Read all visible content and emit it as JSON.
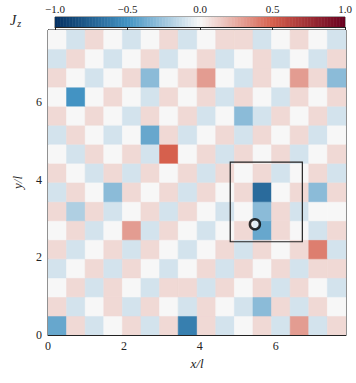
{
  "chart_data": {
    "type": "heatmap",
    "xlabel": "x/l",
    "ylabel": "y/l",
    "xlim": [
      0,
      7.85
    ],
    "ylim": [
      0,
      7.85
    ],
    "xticks": [
      0,
      2,
      4,
      6
    ],
    "yticks": [
      0,
      2,
      4,
      6
    ],
    "colorbar": {
      "label": {
        "text": "J",
        "subscript": "z"
      },
      "range": [
        -1,
        1
      ],
      "ticks": [
        {
          "value": -1,
          "label": "−1.0"
        },
        {
          "value": -0.5,
          "label": "−0.5"
        },
        {
          "value": 0,
          "label": "0.0"
        },
        0.5,
        {
          "value": 1,
          "label": "1.0"
        }
      ]
    },
    "cells": {
      "x_edges": [
        0,
        0.49,
        0.98,
        1.47,
        1.96,
        2.45,
        2.94,
        3.43,
        3.93,
        4.42,
        4.91,
        5.4,
        5.89,
        6.38,
        6.87,
        7.36,
        7.85
      ],
      "y_edges": [
        0,
        0.49,
        0.98,
        1.47,
        1.96,
        2.45,
        2.94,
        3.43,
        3.93,
        4.42,
        4.91,
        5.4,
        5.89,
        6.38,
        6.87,
        7.36,
        7.85
      ],
      "values": [
        [
          -0.4,
          0.1,
          -0.1,
          0.0,
          0.1,
          -0.1,
          0.1,
          -0.6,
          0.1,
          -0.1,
          0.0,
          0.1,
          -0.1,
          0.3,
          -0.1,
          0.1
        ],
        [
          0.1,
          -0.1,
          0.0,
          0.1,
          -0.1,
          0.1,
          0.0,
          -0.1,
          0.1,
          0.0,
          -0.1,
          -0.3,
          0.1,
          -0.1,
          0.1,
          0.0
        ],
        [
          0.0,
          0.1,
          -0.1,
          0.1,
          0.0,
          -0.1,
          0.1,
          0.1,
          -0.1,
          0.1,
          0.0,
          0.1,
          -0.1,
          0.1,
          0.0,
          -0.1
        ],
        [
          -0.1,
          0.0,
          0.1,
          -0.1,
          0.1,
          0.0,
          -0.1,
          0.0,
          0.1,
          -0.1,
          0.1,
          0.0,
          0.1,
          -0.1,
          0.1,
          0.1
        ],
        [
          0.1,
          -0.1,
          0.0,
          0.1,
          -0.1,
          0.1,
          0.0,
          -0.1,
          0.0,
          0.1,
          -0.1,
          0.1,
          0.0,
          0.1,
          0.4,
          -0.1
        ],
        [
          0.0,
          0.1,
          -0.1,
          0.0,
          0.3,
          -0.1,
          0.1,
          0.0,
          -0.1,
          0.0,
          0.1,
          -0.4,
          0.1,
          0.0,
          -0.1,
          0.1
        ],
        [
          0.1,
          -0.2,
          0.1,
          -0.1,
          0.0,
          0.1,
          -0.1,
          0.1,
          0.0,
          -0.1,
          0.0,
          -0.3,
          0.1,
          -0.1,
          0.0,
          0.0
        ],
        [
          -0.1,
          0.1,
          0.0,
          -0.3,
          0.1,
          0.0,
          0.1,
          -0.1,
          0.1,
          0.0,
          0.1,
          -0.7,
          0.0,
          0.1,
          -0.3,
          0.1
        ],
        [
          0.1,
          0.0,
          -0.1,
          0.1,
          -0.1,
          0.1,
          0.0,
          0.1,
          -0.1,
          0.1,
          0.0,
          0.1,
          -0.1,
          0.0,
          0.1,
          -0.1
        ],
        [
          0.0,
          -0.1,
          0.1,
          0.0,
          0.1,
          -0.1,
          0.5,
          0.0,
          0.1,
          -0.1,
          0.1,
          0.0,
          0.1,
          -0.1,
          0.0,
          0.1
        ],
        [
          -0.1,
          0.1,
          0.0,
          -0.1,
          0.0,
          -0.4,
          0.1,
          -0.1,
          0.0,
          0.1,
          -0.1,
          0.1,
          0.0,
          0.1,
          -0.1,
          0.0
        ],
        [
          0.1,
          0.0,
          0.1,
          0.0,
          -0.1,
          0.1,
          0.0,
          0.1,
          -0.1,
          0.0,
          -0.3,
          -0.1,
          0.1,
          0.0,
          0.1,
          -0.1
        ],
        [
          0.0,
          -0.5,
          0.0,
          0.1,
          0.0,
          -0.1,
          0.1,
          0.0,
          0.1,
          -0.1,
          0.1,
          0.0,
          -0.1,
          0.1,
          0.0,
          0.1
        ],
        [
          0.1,
          0.0,
          -0.1,
          0.0,
          0.1,
          -0.3,
          0.0,
          0.1,
          0.3,
          0.0,
          -0.1,
          0.1,
          0.0,
          0.3,
          0.1,
          -0.3
        ],
        [
          -0.1,
          0.1,
          0.0,
          -0.1,
          0.0,
          0.1,
          -0.1,
          0.0,
          0.1,
          -0.1,
          0.0,
          0.1,
          -0.1,
          0.0,
          -0.1,
          0.1
        ],
        [
          0.0,
          -0.1,
          0.1,
          0.0,
          -0.1,
          0.0,
          0.1,
          -0.1,
          0.0,
          0.1,
          0.1,
          -0.1,
          0.0,
          0.1,
          0.0,
          -0.1
        ]
      ]
    },
    "annotations": {
      "box": {
        "x": [
          4.8,
          6.7
        ],
        "y": [
          2.4,
          4.45
        ]
      },
      "circle": {
        "x": 5.45,
        "y": 2.85
      }
    }
  }
}
